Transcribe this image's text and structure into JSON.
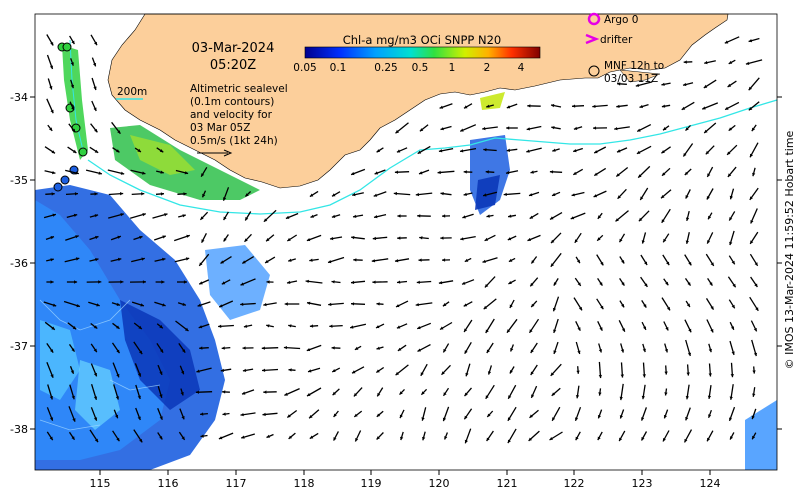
{
  "date": "03-Mar-2024",
  "time": "05:20Z",
  "colorbar": {
    "title": "Chl-a mg/m3 OCi SNPP N20",
    "ticks": [
      "0.05",
      "0.1",
      "0.25",
      "0.5",
      "1",
      "2",
      "4"
    ]
  },
  "legend": {
    "argo": "Argo 0",
    "drifter": "drifter",
    "mnf_line1": "MNF 12h to",
    "mnf_line2": "03/03 11Z"
  },
  "contour_scale": "200m",
  "description_lines": [
    "Altimetric sealevel",
    "(0.1m contours)",
    "and velocity for",
    "03 Mar 05Z",
    "0.5m/s (1kt 24h)"
  ],
  "x_ticks": [
    "115",
    "116",
    "117",
    "118",
    "119",
    "120",
    "121",
    "122",
    "123",
    "124"
  ],
  "y_ticks": [
    "-34",
    "-35",
    "-36",
    "-37",
    "-38"
  ],
  "credit": "© IMOS 13-Mar-2024 11:59:52 Hobart time",
  "colors": {
    "land": "#fccf9b",
    "contour": "#33e6e6",
    "argo": "#e600e6",
    "drifter": "#e600e6"
  }
}
